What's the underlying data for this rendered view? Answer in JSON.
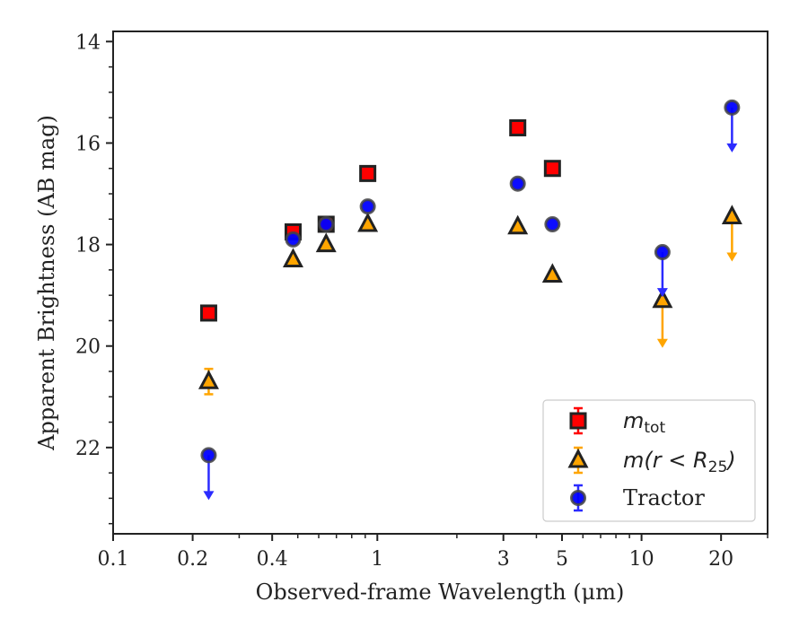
{
  "chart_data": {
    "type": "scatter",
    "xlabel": "Observed-frame Wavelength (μm)",
    "ylabel": "Apparent Brightness (AB mag)",
    "xscale": "log",
    "xlim": [
      0.1,
      30
    ],
    "ylim": [
      23.7,
      13.8
    ],
    "y_inverted": true,
    "x_ticks": [
      0.1,
      0.2,
      0.4,
      1,
      3,
      5,
      10,
      20
    ],
    "x_tick_labels": [
      "0.1",
      "0.2",
      "0.4",
      "1",
      "3",
      "5",
      "10",
      "20"
    ],
    "y_ticks": [
      14,
      16,
      18,
      20,
      22
    ],
    "y_tick_labels": [
      "14",
      "16",
      "18",
      "20",
      "22"
    ],
    "grid": false,
    "legend_position": "lower-right",
    "series": [
      {
        "name": "m_tot",
        "label_main": "m",
        "label_sub": "tot",
        "marker": "square",
        "color": "#ff0000",
        "edge_color": "#222222",
        "points": [
          {
            "x": 0.23,
            "y": 19.35
          },
          {
            "x": 0.48,
            "y": 17.75
          },
          {
            "x": 0.64,
            "y": 17.6
          },
          {
            "x": 0.92,
            "y": 16.6
          },
          {
            "x": 3.4,
            "y": 15.7
          },
          {
            "x": 4.6,
            "y": 16.5
          }
        ]
      },
      {
        "name": "m(r < R_25)",
        "label_pre": "m(r < R",
        "label_sub": "25",
        "label_post": ")",
        "marker": "triangle",
        "color": "#ffa500",
        "edge_color": "#222222",
        "points": [
          {
            "x": 0.23,
            "y": 20.7,
            "yerr": 0.25
          },
          {
            "x": 0.48,
            "y": 18.3
          },
          {
            "x": 0.64,
            "y": 18.0
          },
          {
            "x": 0.92,
            "y": 17.6
          },
          {
            "x": 3.4,
            "y": 17.65
          },
          {
            "x": 4.6,
            "y": 18.6
          },
          {
            "x": 12,
            "y": 19.1,
            "upper_limit": true,
            "arrow_to": 20.0
          },
          {
            "x": 22,
            "y": 17.45,
            "upper_limit": true,
            "arrow_to": 18.3
          }
        ]
      },
      {
        "name": "Tractor",
        "marker": "circle",
        "color": "#0000ff",
        "edge_color": "#444444",
        "points": [
          {
            "x": 0.23,
            "y": 22.15,
            "upper_limit": true,
            "arrow_to": 23.0
          },
          {
            "x": 0.48,
            "y": 17.9
          },
          {
            "x": 0.64,
            "y": 17.6
          },
          {
            "x": 0.92,
            "y": 17.25
          },
          {
            "x": 3.4,
            "y": 16.8
          },
          {
            "x": 4.6,
            "y": 17.6
          },
          {
            "x": 12,
            "y": 18.15,
            "upper_limit": true,
            "arrow_to": 19.0
          },
          {
            "x": 22,
            "y": 15.3,
            "upper_limit": true,
            "arrow_to": 16.15
          }
        ]
      }
    ]
  }
}
